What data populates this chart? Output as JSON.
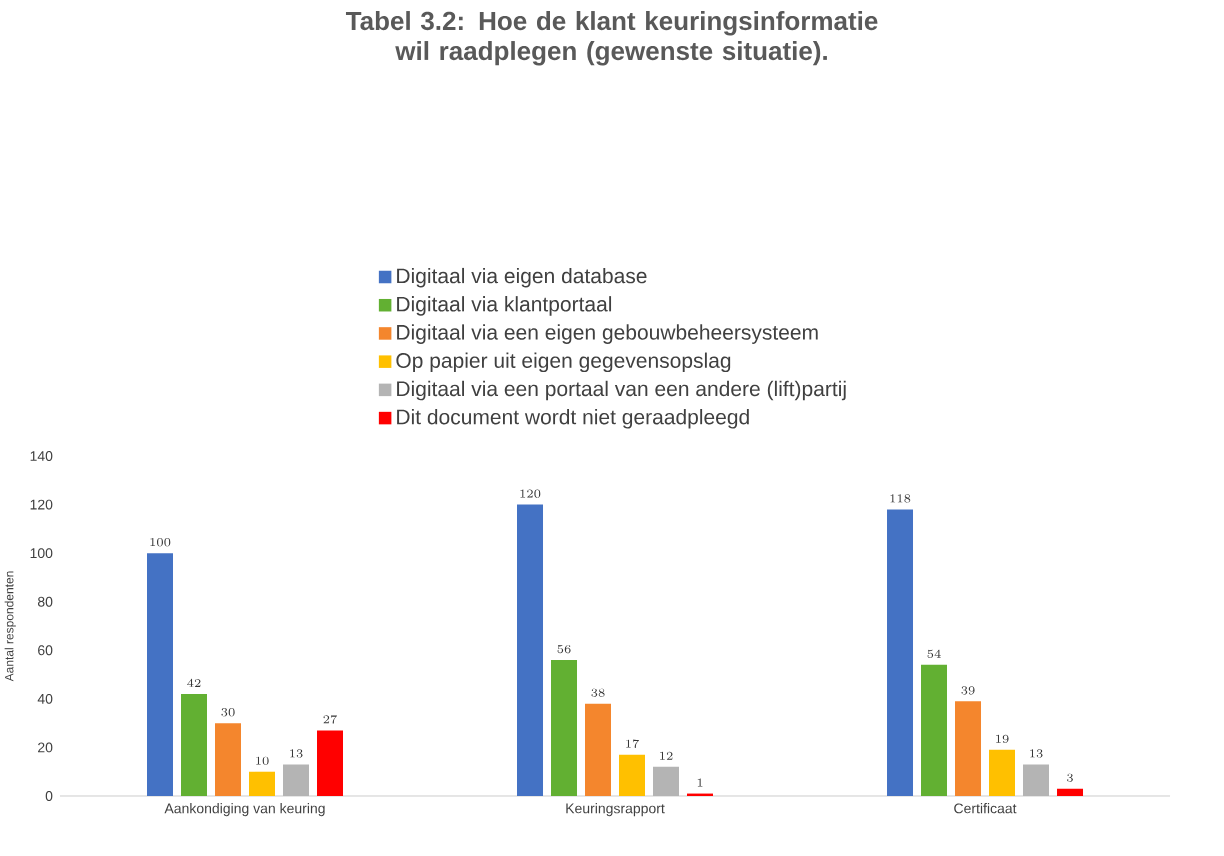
{
  "chart_data": {
    "type": "bar",
    "title": "Tabel 3.2: Hoe de klant keuringsinformatie wil raadplegen (gewenste situatie).",
    "ylabel": "Aantal respondenten",
    "categories": [
      "Aankondiging van keuring",
      "Keuringsrapport",
      "Certificaat"
    ],
    "series": [
      {
        "name": "Digitaal via eigen database",
        "color": "#4472c4",
        "values": [
          100,
          120,
          118
        ]
      },
      {
        "name": "Digitaal via klantportaal",
        "color": "#62b032",
        "values": [
          42,
          56,
          54
        ]
      },
      {
        "name": "Digitaal via een eigen gebouwbeheersysteem",
        "color": "#f4862d",
        "values": [
          30,
          38,
          39
        ]
      },
      {
        "name": "Op papier uit eigen gegevensopslag",
        "color": "#ffc000",
        "values": [
          10,
          17,
          19
        ]
      },
      {
        "name": "Digitaal via een portaal van een andere (lift)partij",
        "color": "#b4b4b4",
        "values": [
          13,
          12,
          13
        ]
      },
      {
        "name": "Dit document wordt niet geraadpleegd",
        "color": "#ff0000",
        "values": [
          27,
          1,
          3
        ]
      }
    ],
    "ylim": [
      0,
      140
    ],
    "yticks": [
      0,
      20,
      40,
      60,
      80,
      100,
      120,
      140
    ],
    "data_labels": true,
    "legend": "top",
    "grid": false
  }
}
